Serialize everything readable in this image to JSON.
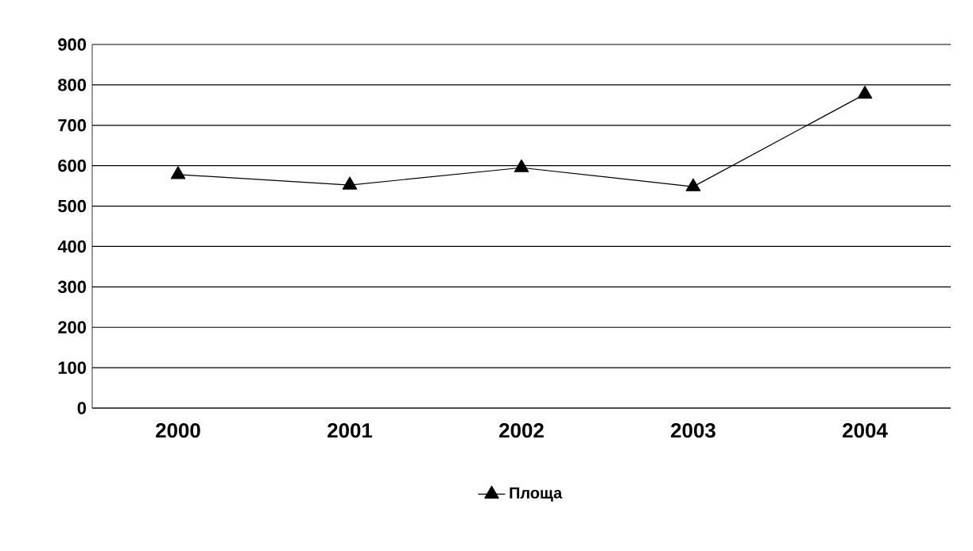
{
  "chart_data": {
    "type": "line",
    "categories": [
      "2000",
      "2001",
      "2002",
      "2003",
      "2004"
    ],
    "series": [
      {
        "name": "Площа",
        "color": "#000000",
        "values": [
          578,
          552,
          595,
          548,
          777
        ]
      }
    ],
    "ylim": [
      0,
      900
    ],
    "yticks": [
      0,
      100,
      200,
      300,
      400,
      500,
      600,
      700,
      800,
      900
    ],
    "grid": "y",
    "legend": "bottom",
    "marker": "triangle",
    "line_style": "solid"
  }
}
